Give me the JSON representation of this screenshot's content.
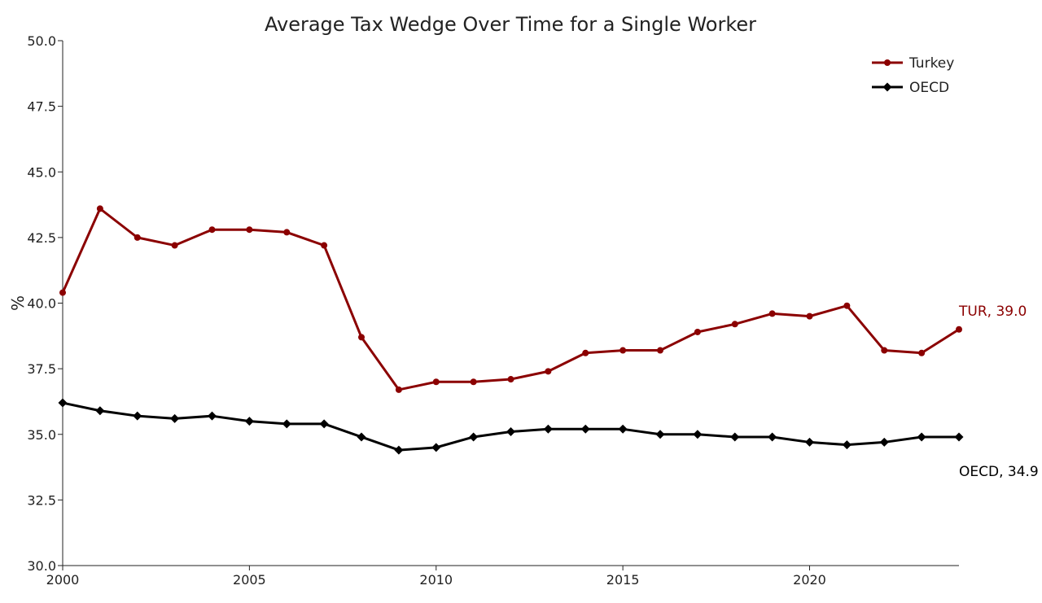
{
  "chart_data": {
    "type": "line",
    "title": "Average Tax Wedge Over Time for a Single Worker",
    "xlabel": "",
    "ylabel": "%",
    "xlim": [
      2000,
      2024
    ],
    "ylim": [
      30.0,
      50.0
    ],
    "xticks": [
      2000,
      2005,
      2010,
      2015,
      2020
    ],
    "yticks": [
      "30.0",
      "32.5",
      "35.0",
      "37.5",
      "40.0",
      "42.5",
      "45.0",
      "47.5",
      "50.0"
    ],
    "grid": false,
    "legend_position": "top-right",
    "x": [
      2000,
      2001,
      2002,
      2003,
      2004,
      2005,
      2006,
      2007,
      2008,
      2009,
      2010,
      2011,
      2012,
      2013,
      2014,
      2015,
      2016,
      2017,
      2018,
      2019,
      2020,
      2021,
      2022,
      2023,
      2024
    ],
    "series": [
      {
        "name": "Turkey",
        "color": "#8b0000",
        "marker": "circle",
        "end_label": "TUR, 39.0",
        "values": [
          40.4,
          43.6,
          42.5,
          42.2,
          42.8,
          42.8,
          42.7,
          42.2,
          38.7,
          36.7,
          37.0,
          37.0,
          37.1,
          37.4,
          38.1,
          38.2,
          38.2,
          38.9,
          39.2,
          39.6,
          39.5,
          39.9,
          38.2,
          38.1,
          39.0
        ]
      },
      {
        "name": "OECD",
        "color": "#000000",
        "marker": "diamond",
        "end_label": "OECD, 34.9",
        "values": [
          36.2,
          35.9,
          35.7,
          35.6,
          35.7,
          35.5,
          35.4,
          35.4,
          34.9,
          34.4,
          34.5,
          34.9,
          35.1,
          35.2,
          35.2,
          35.2,
          35.0,
          35.0,
          34.9,
          34.9,
          34.7,
          34.6,
          34.7,
          34.9,
          34.9
        ]
      }
    ]
  }
}
